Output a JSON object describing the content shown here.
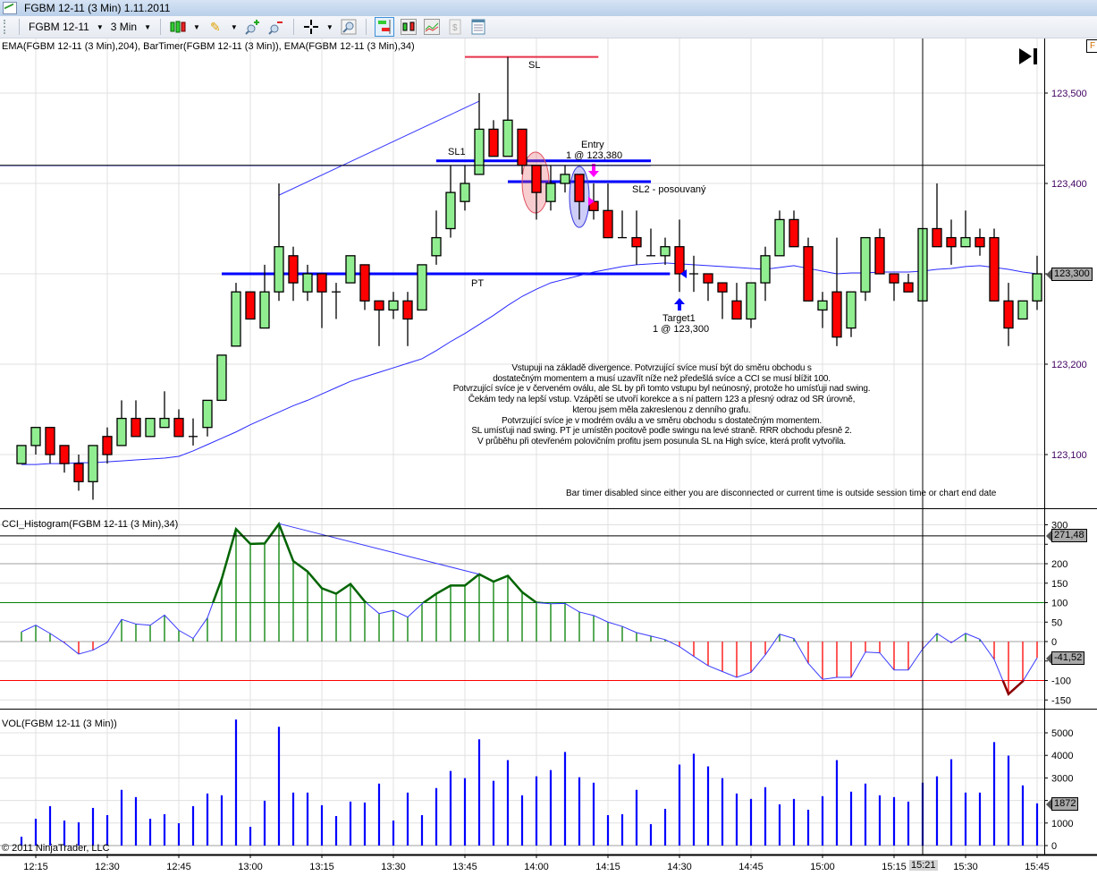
{
  "window": {
    "title": "FGBM 12-11 (3 Min)  1.11.2011"
  },
  "toolbar": {
    "instrument": "FGBM 12-11",
    "interval": "3 Min",
    "icons": [
      "bar-style-icon",
      "pencil-draw-icon",
      "zoom-in-icon",
      "zoom-out-icon",
      "crosshair-icon",
      "find-icon",
      "chart-trader-icon",
      "candlestick-icon",
      "indicators-icon",
      "strategies-icon",
      "properties-icon"
    ]
  },
  "price_panel": {
    "indicator_label": "EMA(FGBM 12-11 (3 Min),204), BarTimer(FGBM 12-11 (3 Min)), EMA(FGBM 12-11 (3 Min),34)",
    "axis_ticks": [
      "123,500",
      "123,400",
      "123,300",
      "123,200",
      "123,100"
    ],
    "last_price_tag": "123,300",
    "bar_timer_message": "Bar timer disabled since either you are disconnected or current time is outside session time or chart end date",
    "colors": {
      "up": "#90ee90",
      "down": "#ff0000",
      "ema": "#0000ff"
    },
    "drawings": {
      "sl": {
        "label": "SL",
        "price": 123.54,
        "from": "13:45",
        "to": "14:13",
        "color": "#e8324a"
      },
      "sl1": {
        "label": "SL1",
        "price": 123.425,
        "from": "13:39",
        "to": "14:24",
        "color": "#0000ff"
      },
      "sl2": {
        "label": "SL2 - posouvaný",
        "price": 123.402,
        "from": "13:54",
        "to": "14:24",
        "color": "#0000ff"
      },
      "pt": {
        "label": "PT",
        "price": 123.3,
        "from": "12:54",
        "to": "14:28",
        "color": "#0000ff"
      },
      "entry": {
        "title": "Entry",
        "detail": "1 @ 123,380"
      },
      "target": {
        "title": "Target1",
        "detail": "1 @ 123,300"
      },
      "divergence_price": {
        "from": [
          "13:06",
          123.387
        ],
        "to": [
          "13:48",
          123.491
        ]
      },
      "red_oval": {
        "time": "14:00",
        "price": 123.401
      },
      "blue_oval": {
        "time": "14:09",
        "price": 123.385
      }
    },
    "annotation_lines": [
      "Vstupuji na základě divergence. Potvrzující svíce musí být do směru obchodu s",
      "dostatečným momentem a musí uzavřít níže než předešlá svíce a CCI se musí blížit 100.",
      "Potvrzující svíce je v červeném oválu, ale SL by při tomto vstupu byl neúnosný, protože ho umísťuji nad swing.",
      "Čekám tedy na lepší vstup. Vzápětí se utvoří korekce a s ní pattern 123 a přesný odraz od SR úrovně,",
      "kterou jsem měla zakreslenou z denního grafu.",
      "Potvrzující svíce je v modrém oválu a ve směru obchodu s dostatečným momentem.",
      "SL umísťuji nad swing. PT je umístěn pocitově podle swingu na levé straně. RRR obchodu přesně 2.",
      "V průběhu při otevřeném polovičním profitu jsem posunula SL na High svíce, která profit vytvořila."
    ]
  },
  "cci_panel": {
    "indicator_label": "CCI_Histogram(FGBM 12-11 (3 Min),34)",
    "axis_ticks": [
      "300",
      "250",
      "200",
      "150",
      "100",
      "50",
      "0",
      "-50",
      "-100",
      "-150"
    ],
    "crosshair_tag": "271,48",
    "last_value_tag": "-41,52",
    "divergence": {
      "from": [
        "13:06",
        303
      ],
      "to": [
        "13:48",
        173
      ]
    }
  },
  "volume_panel": {
    "indicator_label": "VOL(FGBM 12-11 (3 Min))",
    "axis_ticks": [
      "5000",
      "4000",
      "3000",
      "2000",
      "1000",
      "0"
    ],
    "last_value_tag": "1872",
    "copyright": "© 2011 NinjaTrader, LLC"
  },
  "time_axis": {
    "labels": [
      "12:15",
      "12:30",
      "12:45",
      "13:00",
      "13:15",
      "13:30",
      "13:45",
      "14:00",
      "14:15",
      "14:30",
      "14:45",
      "15:00",
      "15:15",
      "15:30",
      "15:45"
    ],
    "crosshair_time": "15:21"
  },
  "chart_data": {
    "type": "candlestick",
    "instrument": "FGBM 12-11",
    "interval_minutes": 3,
    "first_bar_time": "12:12",
    "ylim": [
      123.05,
      123.56
    ],
    "ohlc": [
      [
        123.09,
        123.11,
        123.09,
        123.11
      ],
      [
        123.11,
        123.13,
        123.1,
        123.13
      ],
      [
        123.13,
        123.13,
        123.09,
        123.1
      ],
      [
        123.11,
        123.11,
        123.08,
        123.09
      ],
      [
        123.09,
        123.1,
        123.06,
        123.07
      ],
      [
        123.07,
        123.11,
        123.05,
        123.11
      ],
      [
        123.12,
        123.13,
        123.09,
        123.1
      ],
      [
        123.11,
        123.16,
        123.11,
        123.14
      ],
      [
        123.14,
        123.16,
        123.12,
        123.12
      ],
      [
        123.12,
        123.14,
        123.12,
        123.14
      ],
      [
        123.13,
        123.17,
        123.13,
        123.14
      ],
      [
        123.14,
        123.15,
        123.12,
        123.12
      ],
      [
        123.12,
        123.14,
        123.11,
        123.12
      ],
      [
        123.13,
        123.16,
        123.12,
        123.16
      ],
      [
        123.16,
        123.21,
        123.16,
        123.21
      ],
      [
        123.22,
        123.29,
        123.22,
        123.28
      ],
      [
        123.28,
        123.28,
        123.25,
        123.25
      ],
      [
        123.24,
        123.31,
        123.24,
        123.28
      ],
      [
        123.28,
        123.4,
        123.27,
        123.33
      ],
      [
        123.32,
        123.33,
        123.27,
        123.29
      ],
      [
        123.28,
        123.31,
        123.27,
        123.3
      ],
      [
        123.3,
        123.3,
        123.24,
        123.28
      ],
      [
        123.28,
        123.29,
        123.25,
        123.28
      ],
      [
        123.29,
        123.32,
        123.29,
        123.32
      ],
      [
        123.31,
        123.31,
        123.26,
        123.27
      ],
      [
        123.27,
        123.27,
        123.22,
        123.26
      ],
      [
        123.26,
        123.28,
        123.25,
        123.27
      ],
      [
        123.27,
        123.28,
        123.22,
        123.25
      ],
      [
        123.26,
        123.31,
        123.26,
        123.31
      ],
      [
        123.32,
        123.37,
        123.31,
        123.34
      ],
      [
        123.35,
        123.42,
        123.34,
        123.39
      ],
      [
        123.38,
        123.42,
        123.37,
        123.4
      ],
      [
        123.41,
        123.5,
        123.41,
        123.46
      ],
      [
        123.46,
        123.47,
        123.43,
        123.43
      ],
      [
        123.43,
        123.54,
        123.43,
        123.47
      ],
      [
        123.46,
        123.46,
        123.41,
        123.42
      ],
      [
        123.42,
        123.42,
        123.36,
        123.39
      ],
      [
        123.38,
        123.42,
        123.37,
        123.4
      ],
      [
        123.4,
        123.42,
        123.39,
        123.41
      ],
      [
        123.41,
        123.41,
        123.36,
        123.38
      ],
      [
        123.38,
        123.4,
        123.36,
        123.37
      ],
      [
        123.37,
        123.4,
        123.34,
        123.34
      ],
      [
        123.34,
        123.37,
        123.34,
        123.34
      ],
      [
        123.34,
        123.37,
        123.31,
        123.33
      ],
      [
        123.32,
        123.35,
        123.32,
        123.32
      ],
      [
        123.32,
        123.34,
        123.31,
        123.33
      ],
      [
        123.33,
        123.36,
        123.28,
        123.3
      ],
      [
        123.3,
        123.32,
        123.28,
        123.3
      ],
      [
        123.3,
        123.3,
        123.27,
        123.29
      ],
      [
        123.29,
        123.29,
        123.25,
        123.28
      ],
      [
        123.27,
        123.29,
        123.25,
        123.25
      ],
      [
        123.25,
        123.29,
        123.24,
        123.29
      ],
      [
        123.29,
        123.33,
        123.27,
        123.32
      ],
      [
        123.32,
        123.37,
        123.32,
        123.36
      ],
      [
        123.36,
        123.37,
        123.33,
        123.33
      ],
      [
        123.33,
        123.34,
        123.27,
        123.27
      ],
      [
        123.26,
        123.28,
        123.24,
        123.27
      ],
      [
        123.28,
        123.34,
        123.22,
        123.23
      ],
      [
        123.24,
        123.28,
        123.23,
        123.28
      ],
      [
        123.28,
        123.34,
        123.27,
        123.34
      ],
      [
        123.34,
        123.35,
        123.3,
        123.3
      ],
      [
        123.3,
        123.3,
        123.27,
        123.29
      ],
      [
        123.29,
        123.3,
        123.28,
        123.28
      ],
      [
        123.27,
        123.35,
        123.27,
        123.35
      ],
      [
        123.35,
        123.4,
        123.33,
        123.33
      ],
      [
        123.34,
        123.36,
        123.31,
        123.33
      ],
      [
        123.33,
        123.37,
        123.33,
        123.34
      ],
      [
        123.34,
        123.35,
        123.32,
        123.33
      ],
      [
        123.34,
        123.35,
        123.27,
        123.27
      ],
      [
        123.27,
        123.29,
        123.22,
        123.24
      ],
      [
        123.25,
        123.27,
        123.25,
        123.27
      ],
      [
        123.27,
        123.32,
        123.26,
        123.3
      ]
    ],
    "ema34": [
      123.089,
      123.089,
      123.09,
      123.09,
      123.091,
      123.091,
      123.092,
      123.093,
      123.094,
      123.095,
      123.096,
      123.098,
      123.104,
      123.111,
      123.118,
      123.125,
      123.133,
      123.14,
      123.147,
      123.154,
      123.16,
      123.167,
      123.174,
      123.181,
      123.186,
      123.191,
      123.196,
      123.201,
      123.206,
      123.215,
      123.225,
      123.234,
      123.244,
      123.254,
      123.265,
      123.275,
      123.283,
      123.29,
      123.294,
      123.298,
      123.302,
      123.305,
      123.308,
      123.31,
      123.311,
      123.312,
      123.311,
      123.31,
      123.309,
      123.308,
      123.307,
      123.306,
      123.305,
      123.307,
      123.309,
      123.306,
      123.303,
      123.3,
      123.301,
      123.301,
      123.302,
      123.302,
      123.302,
      123.303,
      123.305,
      123.306,
      123.308,
      123.309,
      123.307,
      123.305,
      123.302,
      123.3
    ],
    "cci": [
      25,
      42,
      21,
      -3,
      -32,
      -22,
      -2,
      57,
      45,
      42,
      68,
      29,
      8,
      61,
      161,
      289,
      251,
      252,
      302,
      207,
      180,
      137,
      123,
      148,
      103,
      72,
      80,
      63,
      97,
      123,
      144,
      144,
      173,
      154,
      169,
      127,
      100,
      97,
      98,
      76,
      67,
      50,
      39,
      23,
      14,
      5,
      -13,
      -38,
      -62,
      -77,
      -92,
      -79,
      -34,
      19,
      8,
      -56,
      -97,
      -92,
      -92,
      -27,
      -29,
      -73,
      -73,
      -19,
      21,
      -3,
      21,
      6,
      -46,
      -135,
      -102,
      -42
    ],
    "cci_levels": {
      "upper": 100,
      "lower": -100,
      "mid": 200
    },
    "volume": [
      390,
      1190,
      1750,
      1110,
      1030,
      1670,
      1350,
      2470,
      2150,
      1190,
      1390,
      990,
      1750,
      2310,
      2230,
      5590,
      830,
      1990,
      5270,
      2350,
      2350,
      1790,
      1310,
      1950,
      1910,
      2750,
      1110,
      2350,
      1350,
      2550,
      3310,
      2990,
      4710,
      2870,
      3790,
      2230,
      3070,
      3350,
      4150,
      3030,
      2790,
      1350,
      1390,
      2470,
      950,
      1630,
      3590,
      4070,
      3510,
      2990,
      2310,
      2070,
      2590,
      1830,
      2070,
      1590,
      2190,
      3790,
      2390,
      2750,
      2230,
      2150,
      1950,
      2790,
      3070,
      3830,
      2350,
      2350,
      4590,
      3990,
      2670,
      1872
    ],
    "crosshair": {
      "time": "15:21",
      "price": 123.42,
      "cci": 271.48
    }
  }
}
